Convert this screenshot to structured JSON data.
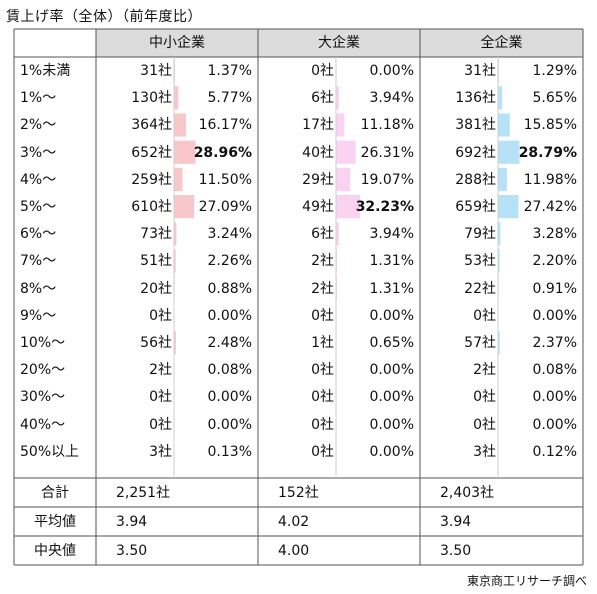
{
  "title": "賃上げ率（全体）（前年度比）",
  "source": "東京商工リサーチ調べ",
  "colors": {
    "small": "#f9c6c9",
    "large": "#fad3f2",
    "all": "#b6e1f7",
    "header_bg": "#dcdcdc"
  },
  "chart_data": {
    "type": "table",
    "columns": [
      "中小企業",
      "大企業",
      "全企業"
    ],
    "rows": [
      {
        "label": "1%未満",
        "small": [
          "31社",
          "1.37%"
        ],
        "large": [
          "0社",
          "0.00%"
        ],
        "all": [
          "31社",
          "1.29%"
        ]
      },
      {
        "label": "1%～",
        "small": [
          "130社",
          "5.77%"
        ],
        "large": [
          "6社",
          "3.94%"
        ],
        "all": [
          "136社",
          "5.65%"
        ]
      },
      {
        "label": "2%～",
        "small": [
          "364社",
          "16.17%"
        ],
        "large": [
          "17社",
          "11.18%"
        ],
        "all": [
          "381社",
          "15.85%"
        ]
      },
      {
        "label": "3%～",
        "small": [
          "652社",
          "28.96%"
        ],
        "large": [
          "40社",
          "26.31%"
        ],
        "all": [
          "692社",
          "28.79%"
        ]
      },
      {
        "label": "4%～",
        "small": [
          "259社",
          "11.50%"
        ],
        "large": [
          "29社",
          "19.07%"
        ],
        "all": [
          "288社",
          "11.98%"
        ]
      },
      {
        "label": "5%～",
        "small": [
          "610社",
          "27.09%"
        ],
        "large": [
          "49社",
          "32.23%"
        ],
        "all": [
          "659社",
          "27.42%"
        ]
      },
      {
        "label": "6%～",
        "small": [
          "73社",
          "3.24%"
        ],
        "large": [
          "6社",
          "3.94%"
        ],
        "all": [
          "79社",
          "3.28%"
        ]
      },
      {
        "label": "7%～",
        "small": [
          "51社",
          "2.26%"
        ],
        "large": [
          "2社",
          "1.31%"
        ],
        "all": [
          "53社",
          "2.20%"
        ]
      },
      {
        "label": "8%～",
        "small": [
          "20社",
          "0.88%"
        ],
        "large": [
          "2社",
          "1.31%"
        ],
        "all": [
          "22社",
          "0.91%"
        ]
      },
      {
        "label": "9%～",
        "small": [
          "0社",
          "0.00%"
        ],
        "large": [
          "0社",
          "0.00%"
        ],
        "all": [
          "0社",
          "0.00%"
        ]
      },
      {
        "label": "10%～",
        "small": [
          "56社",
          "2.48%"
        ],
        "large": [
          "1社",
          "0.65%"
        ],
        "all": [
          "57社",
          "2.37%"
        ]
      },
      {
        "label": "20%～",
        "small": [
          "2社",
          "0.08%"
        ],
        "large": [
          "0社",
          "0.00%"
        ],
        "all": [
          "2社",
          "0.08%"
        ]
      },
      {
        "label": "30%～",
        "small": [
          "0社",
          "0.00%"
        ],
        "large": [
          "0社",
          "0.00%"
        ],
        "all": [
          "0社",
          "0.00%"
        ]
      },
      {
        "label": "40%～",
        "small": [
          "0社",
          "0.00%"
        ],
        "large": [
          "0社",
          "0.00%"
        ],
        "all": [
          "0社",
          "0.00%"
        ]
      },
      {
        "label": "50%以上",
        "small": [
          "3社",
          "0.13%"
        ],
        "large": [
          "0社",
          "0.00%"
        ],
        "all": [
          "3社",
          "0.12%"
        ]
      }
    ],
    "bold_max": {
      "small": 3,
      "large": 5,
      "all": 3
    },
    "summary": [
      {
        "label": "合計",
        "small": "2,251社",
        "large": "152社",
        "all": "2,403社"
      },
      {
        "label": "平均値",
        "small": "3.94",
        "large": "4.02",
        "all": "3.94"
      },
      {
        "label": "中央値",
        "small": "3.50",
        "large": "4.00",
        "all": "3.50"
      }
    ]
  }
}
